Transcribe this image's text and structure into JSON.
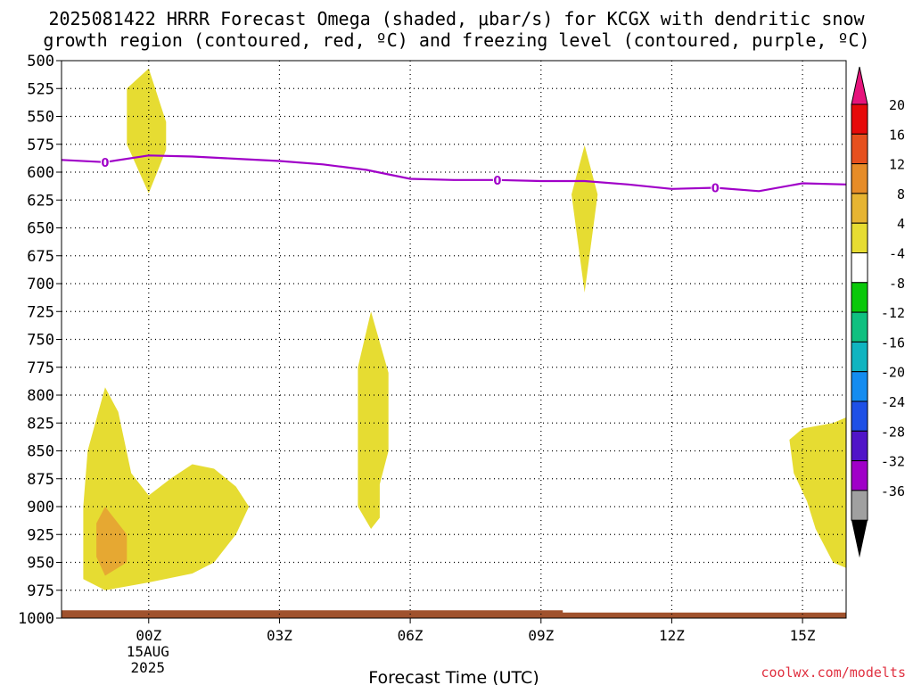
{
  "title_line1": "2025081422 HRRR Forecast Omega (shaded, μbar/s) for KCGX with dendritic snow",
  "title_line2": "growth region (contoured, red, ºC) and freezing level (contoured, purple, ºC)",
  "credit": "coolwx.com/modelts",
  "chart_data": {
    "type": "area",
    "xlabel": "Forecast Time (UTC)",
    "ylabel": "",
    "x_unit": "hours from 00Z 15AUG2025",
    "xlim": [
      -2,
      16
    ],
    "ylim": [
      1000,
      500
    ],
    "y_ticks": [
      500,
      525,
      550,
      575,
      600,
      625,
      650,
      675,
      700,
      725,
      750,
      775,
      800,
      825,
      850,
      875,
      900,
      925,
      950,
      975,
      1000
    ],
    "x_ticks": [
      {
        "x": 0,
        "label": "00Z",
        "sub1": "15AUG",
        "sub2": "2025"
      },
      {
        "x": 3,
        "label": "03Z",
        "sub1": "",
        "sub2": ""
      },
      {
        "x": 6,
        "label": "06Z",
        "sub1": "",
        "sub2": ""
      },
      {
        "x": 9,
        "label": "09Z",
        "sub1": "",
        "sub2": ""
      },
      {
        "x": 12,
        "label": "12Z",
        "sub1": "",
        "sub2": ""
      },
      {
        "x": 15,
        "label": "15Z",
        "sub1": "",
        "sub2": ""
      }
    ],
    "grid": true,
    "freezing_level": {
      "color": "#a000c8",
      "label": "0",
      "points": [
        [
          -2,
          589
        ],
        [
          -1,
          591
        ],
        [
          0,
          585
        ],
        [
          1,
          586
        ],
        [
          2,
          588
        ],
        [
          3,
          590
        ],
        [
          4,
          593
        ],
        [
          5,
          598
        ],
        [
          6,
          606
        ],
        [
          7,
          607
        ],
        [
          8,
          607
        ],
        [
          9,
          608
        ],
        [
          10,
          608
        ],
        [
          11,
          611
        ],
        [
          12,
          615
        ],
        [
          13,
          614
        ],
        [
          14,
          617
        ],
        [
          15,
          610
        ],
        [
          16,
          611
        ]
      ],
      "label_points": [
        [
          -1,
          591
        ],
        [
          8,
          607
        ],
        [
          13,
          614
        ]
      ]
    },
    "omega_regions": [
      {
        "level": 4,
        "color": "#e6dc32",
        "points": [
          [
            -0.5,
            525
          ],
          [
            0,
            507
          ],
          [
            0.4,
            555
          ],
          [
            0.4,
            580
          ],
          [
            0,
            619
          ],
          [
            -0.5,
            575
          ]
        ]
      },
      {
        "level": 4,
        "color": "#e6dc32",
        "points": [
          [
            9.7,
            620
          ],
          [
            10,
            576
          ],
          [
            10.3,
            620
          ],
          [
            10,
            708
          ]
        ]
      },
      {
        "level": 4,
        "color": "#e6dc32",
        "points": [
          [
            4.8,
            775
          ],
          [
            5.1,
            725
          ],
          [
            5.5,
            780
          ],
          [
            5.5,
            850
          ],
          [
            5.3,
            880
          ],
          [
            5.3,
            910
          ],
          [
            5.1,
            920
          ],
          [
            4.8,
            900
          ],
          [
            4.8,
            850
          ]
        ]
      },
      {
        "level": 4,
        "color": "#e6dc32",
        "points": [
          [
            -1.4,
            850
          ],
          [
            -1.0,
            793
          ],
          [
            -0.7,
            815
          ],
          [
            -0.4,
            870
          ],
          [
            0,
            890
          ],
          [
            0.5,
            875
          ],
          [
            1.0,
            862
          ],
          [
            1.5,
            866
          ],
          [
            2.0,
            882
          ],
          [
            2.3,
            900
          ],
          [
            2.0,
            925
          ],
          [
            1.5,
            950
          ],
          [
            1.0,
            960
          ],
          [
            0,
            968
          ],
          [
            -1,
            975
          ],
          [
            -1.5,
            965
          ],
          [
            -1.5,
            900
          ]
        ]
      },
      {
        "level": 8,
        "color": "#e6a832",
        "points": [
          [
            -1.2,
            915
          ],
          [
            -1.0,
            900
          ],
          [
            -0.5,
            925
          ],
          [
            -0.5,
            950
          ],
          [
            -1.0,
            962
          ],
          [
            -1.2,
            945
          ]
        ]
      },
      {
        "level": 4,
        "color": "#e6dc32",
        "points": [
          [
            14.7,
            840
          ],
          [
            15,
            830
          ],
          [
            15.7,
            825
          ],
          [
            16,
            820
          ],
          [
            16,
            955
          ],
          [
            15.7,
            950
          ],
          [
            15.3,
            920
          ],
          [
            15.1,
            895
          ],
          [
            14.8,
            870
          ]
        ]
      }
    ],
    "surface": {
      "color": "#a0522d",
      "points": [
        [
          -2,
          993
        ],
        [
          9.5,
          993
        ],
        [
          9.5,
          995
        ],
        [
          16,
          995
        ]
      ]
    },
    "colorbar": {
      "levels": [
        "20",
        "16",
        "12",
        "8",
        "4",
        "-4",
        "-8",
        "-12",
        "-16",
        "-20",
        "-24",
        "-28",
        "-32",
        "-36"
      ],
      "colors": [
        "#e60a0a",
        "#e6501e",
        "#e68c28",
        "#e6b432",
        "#e6dc32",
        "#ffffff",
        "#0ac80a",
        "#10c080",
        "#10b4c0",
        "#148cf0",
        "#1e50e6",
        "#5014c8",
        "#a000c8",
        "#a0a0a0"
      ],
      "top_arrow_color": "#e6147c",
      "bottom_arrow_color": "#000000"
    }
  }
}
